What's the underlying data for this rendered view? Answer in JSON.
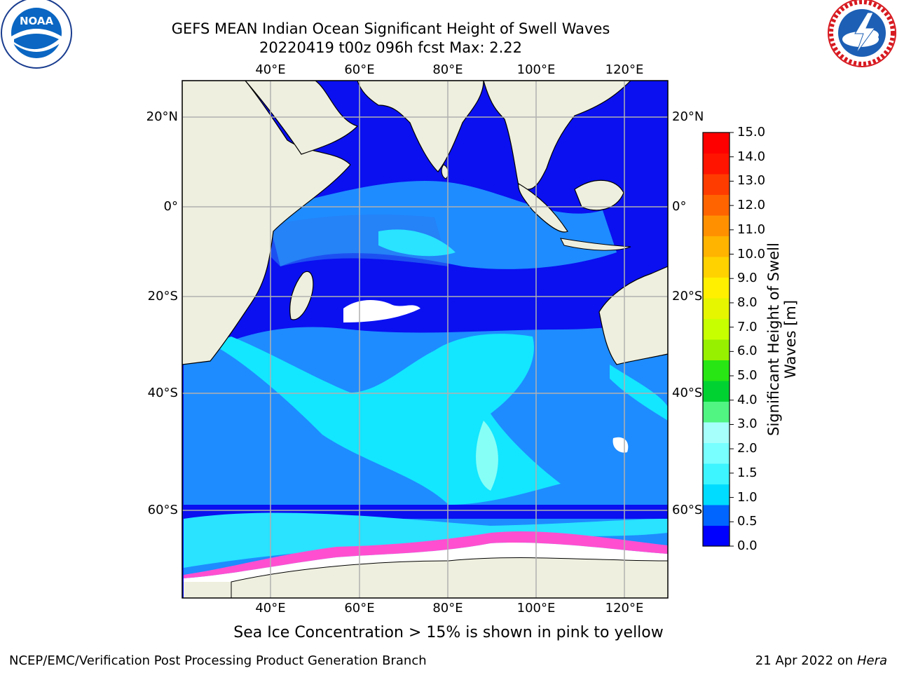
{
  "header": {
    "title": "GEFS MEAN Indian Ocean Significant Height of Swell Waves",
    "subtitle": "20220419 t00z 096h fcst   Max: 2.22"
  },
  "logos": {
    "left": {
      "icon": "noaa-logo-icon",
      "text": "NOAA",
      "ring_text": "NATIONAL OCEANIC AND ATMOSPHERIC ADMINISTRATION · U.S. DEPARTMENT OF COMMERCE"
    },
    "right": {
      "icon": "nws-logo-icon",
      "ring_text": "NATIONAL WEATHER SERVICE"
    }
  },
  "map": {
    "lon_labels": [
      "40°E",
      "60°E",
      "80°E",
      "100°E",
      "120°E"
    ],
    "lat_labels_left": [
      "20°N",
      "0°",
      "20°S",
      "40°S",
      "60°S"
    ],
    "lat_labels_right": [
      "20°N",
      "0°",
      "20°S",
      "40°S",
      "60°S"
    ],
    "colors": {
      "land": "#efefdf",
      "ocean_low": "#0008f5",
      "grid": "#b0b0b0"
    }
  },
  "colorbar": {
    "ticks": [
      "15.0",
      "14.0",
      "13.0",
      "12.0",
      "11.0",
      "10.0",
      "9.0",
      "8.0",
      "7.0",
      "6.0",
      "5.0",
      "4.0",
      "3.0",
      "2.0",
      "1.5",
      "1.0",
      "0.5",
      "0.0"
    ],
    "colors_bottom_to_top": [
      "#0000ff",
      "#0064ff",
      "#00dcff",
      "#3cf5ff",
      "#78ffff",
      "#a6fffa",
      "#50f582",
      "#00d232",
      "#28e614",
      "#96f000",
      "#c8ff00",
      "#e6f500",
      "#fff000",
      "#ffd200",
      "#ffb400",
      "#ff9100",
      "#ff6400",
      "#ff3c00",
      "#ff1400",
      "#ff0000"
    ],
    "label": "Significant Height of Swell Waves [m]"
  },
  "note": "Sea Ice Concentration > 15% is shown in pink to yellow",
  "footer": {
    "left": "NCEP/EMC/Verification Post Processing Product Generation Branch",
    "right_prefix": "21 Apr 2022 on",
    "right_host": "Hera"
  }
}
